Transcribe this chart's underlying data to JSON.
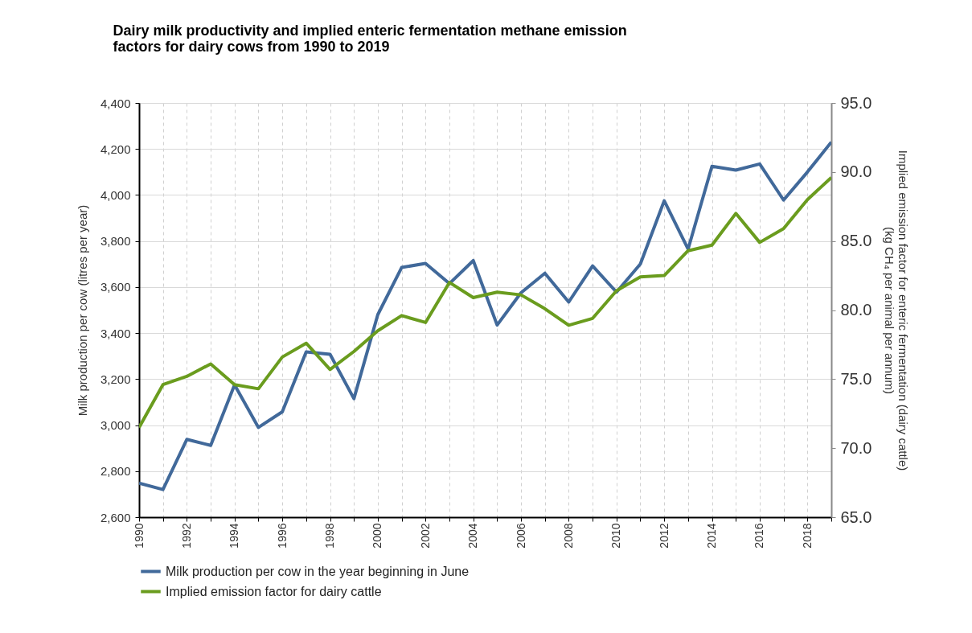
{
  "chart_data": {
    "type": "line",
    "title": "Dairy milk productivity and implied enteric fermentation methane emission factors for dairy cows from 1990 to 2019",
    "ylabel": "Milk production per cow (litres per year)",
    "y2label": "Implied emission factor for enteric fermentation (dairy cattle) (kg CH₄ per animal per annum)",
    "x": [
      1990,
      1991,
      1992,
      1993,
      1994,
      1995,
      1996,
      1997,
      1998,
      1999,
      2000,
      2001,
      2002,
      2003,
      2004,
      2005,
      2006,
      2007,
      2008,
      2009,
      2010,
      2011,
      2012,
      2013,
      2014,
      2015,
      2016,
      2017,
      2018,
      2019
    ],
    "xlim": [
      1990,
      2019
    ],
    "xticks": [
      1990,
      {
        "value": 1991,
        "label": null
      },
      1992,
      {
        "value": 1993,
        "label": null
      },
      1994,
      {
        "value": 1995,
        "label": null
      },
      1996,
      {
        "value": 1997,
        "label": null
      },
      1998,
      {
        "value": 1999,
        "label": null
      },
      2000,
      {
        "value": 2001,
        "label": null
      },
      2002,
      {
        "value": 2003,
        "label": null
      },
      2004,
      {
        "value": 2005,
        "label": null
      },
      2006,
      {
        "value": 2007,
        "label": null
      },
      2008,
      {
        "value": 2009,
        "label": null
      },
      2010,
      {
        "value": 2011,
        "label": null
      },
      2012,
      {
        "value": 2013,
        "label": null
      },
      2014,
      {
        "value": 2015,
        "label": null
      },
      2016,
      {
        "value": 2017,
        "label": null
      },
      2018,
      {
        "value": 2019,
        "label": null
      }
    ],
    "ylim": [
      2600,
      4400
    ],
    "yticks": [
      {
        "value": 2600,
        "label": "2,600"
      },
      {
        "value": 2800,
        "label": "2,800"
      },
      {
        "value": 3000,
        "label": "3,000"
      },
      {
        "value": 3200,
        "label": "3,200"
      },
      {
        "value": 3400,
        "label": "3,400"
      },
      {
        "value": 3600,
        "label": "3,600"
      },
      {
        "value": 3800,
        "label": "3,800"
      },
      {
        "value": 4000,
        "label": "4,000"
      },
      {
        "value": 4200,
        "label": "4,200"
      },
      {
        "value": 4400,
        "label": "4,400"
      }
    ],
    "y2lim": [
      65,
      95
    ],
    "y2ticks": [
      {
        "value": 65,
        "label": "65.0"
      },
      {
        "value": 70,
        "label": "70.0"
      },
      {
        "value": 75,
        "label": "75.0"
      },
      {
        "value": 80,
        "label": "80.0"
      },
      {
        "value": 85,
        "label": "85.0"
      },
      {
        "value": 90,
        "label": "90.0"
      },
      {
        "value": 95,
        "label": "95.0"
      }
    ],
    "grid": true,
    "legend": "bottom",
    "marker": "none",
    "line_style": "solid",
    "series": [
      {
        "name": "Milk production per cow in the year beginning in June",
        "color": "#41699a",
        "values": [
          2748,
          2720,
          2938,
          2912,
          3175,
          2990,
          3058,
          3318,
          3308,
          3115,
          3480,
          3685,
          3703,
          3615,
          3715,
          3435,
          3575,
          3660,
          3535,
          3692,
          3578,
          3700,
          3975,
          3765,
          4125,
          4108,
          4135,
          3978,
          4100,
          4230
        ]
      },
      {
        "name": "Implied emission factor for dairy cattle",
        "color": "#6a9c1e",
        "axis": "y2",
        "values": [
          71.5,
          74.6,
          75.2,
          76.1,
          74.6,
          74.3,
          76.6,
          77.6,
          75.7,
          77.0,
          78.5,
          79.6,
          79.1,
          82.0,
          80.9,
          81.3,
          81.1,
          80.1,
          78.9,
          79.4,
          81.4,
          82.4,
          82.5,
          84.3,
          84.7,
          87.0,
          84.9,
          85.9,
          88.0,
          89.6
        ]
      }
    ]
  }
}
